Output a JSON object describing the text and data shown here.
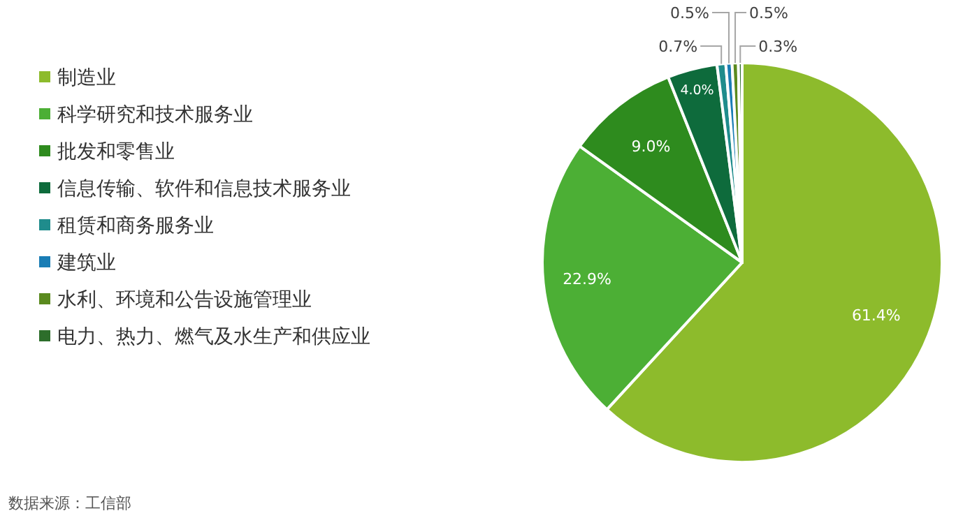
{
  "chart_data": {
    "type": "pie",
    "categories": [
      "制造业",
      "科学研究和技术服务业",
      "批发和零售业",
      "信息传输、软件和信息技术服务业",
      "租赁和商务服务业",
      "建筑业",
      "水利、环境和公告设施管理业",
      "电力、热力、燃气及水生产和供应业"
    ],
    "values": [
      61.4,
      22.9,
      9.0,
      4.0,
      0.7,
      0.5,
      0.5,
      0.3
    ],
    "colors": [
      "#8dbb2c",
      "#4caf35",
      "#2e8b1e",
      "#0e6b3c",
      "#1f8c8c",
      "#1a7db5",
      "#5a8a1e",
      "#2d6e2b"
    ],
    "value_labels": [
      "61.4%",
      "22.9%",
      "9.0%",
      "4.0%",
      "0.7%",
      "0.5%",
      "0.5%",
      "0.3%"
    ],
    "legend": "left",
    "annotations": [
      "数据来源：工信部"
    ]
  }
}
